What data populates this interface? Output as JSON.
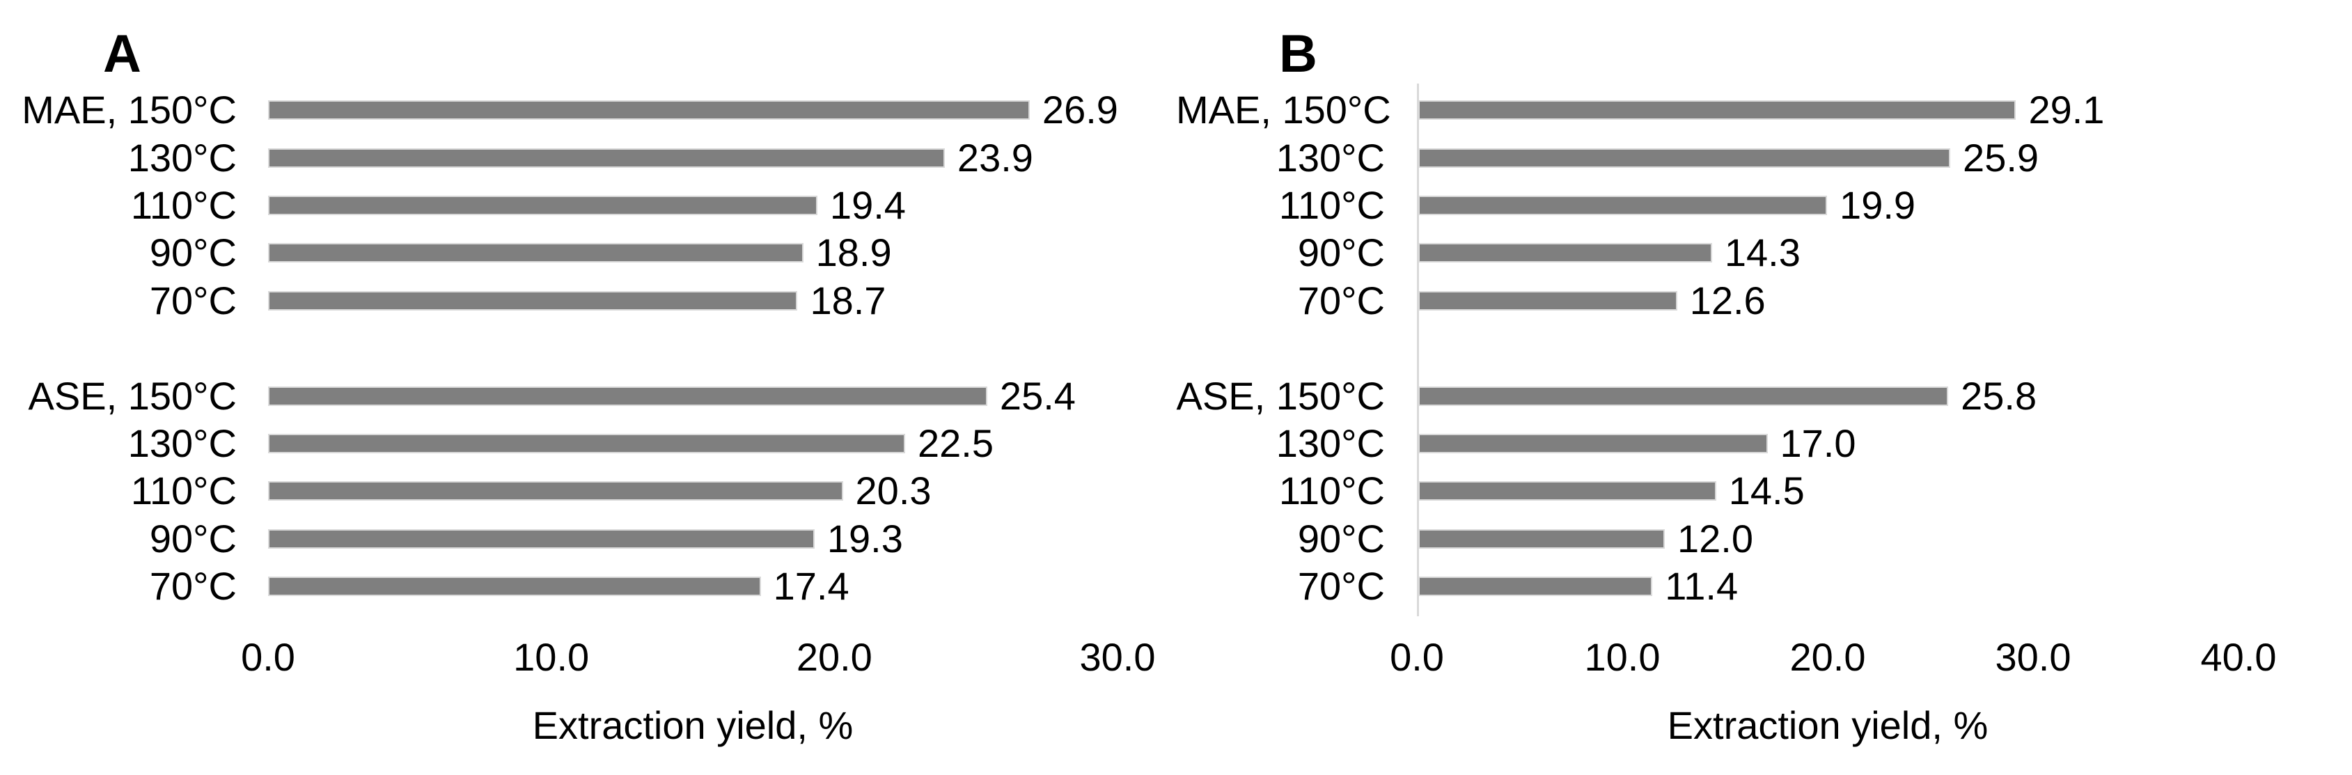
{
  "figure": {
    "background": "#ffffff",
    "description": "Two horizontal bar charts comparing extraction yields of MAE and ASE methods at different temperatures"
  },
  "colors": {
    "bar_fill": "#7f7f7f",
    "bar_border": "#d9d9d9",
    "axis_line": "#d9d9d9",
    "text": "#000000"
  },
  "chart_data": [
    {
      "type": "bar",
      "orientation": "horizontal",
      "panel_label": "A",
      "xlabel": "Extraction yield, %",
      "ylabel": "",
      "xlim": [
        0,
        30
      ],
      "xticks": [
        "0.0",
        "10.0",
        "20.0",
        "30.0"
      ],
      "grid": false,
      "legend": false,
      "axis_line_visible": false,
      "groups": [
        {
          "name": "MAE",
          "row_indexes": [
            0,
            1,
            2,
            3,
            4
          ]
        },
        {
          "name": "ASE",
          "row_indexes": [
            5,
            6,
            7,
            8,
            9
          ]
        }
      ],
      "categories": [
        "MAE, 150°C",
        "130°C",
        "110°C",
        "90°C",
        "70°C",
        "ASE, 150°C",
        "130°C",
        "110°C",
        "90°C",
        "70°C"
      ],
      "values": [
        26.9,
        23.9,
        19.4,
        18.9,
        18.7,
        25.4,
        22.5,
        20.3,
        19.3,
        17.4
      ],
      "value_labels": [
        "26.9",
        "23.9",
        "19.4",
        "18.9",
        "18.7",
        "25.4",
        "22.5",
        "20.3",
        "19.3",
        "17.4"
      ]
    },
    {
      "type": "bar",
      "orientation": "horizontal",
      "panel_label": "B",
      "xlabel": "Extraction yield, %",
      "ylabel": "",
      "xlim": [
        0,
        40
      ],
      "xticks": [
        "0.0",
        "10.0",
        "20.0",
        "30.0",
        "40.0"
      ],
      "grid": false,
      "legend": false,
      "axis_line_visible": true,
      "groups": [
        {
          "name": "MAE",
          "row_indexes": [
            0,
            1,
            2,
            3,
            4
          ]
        },
        {
          "name": "ASE",
          "row_indexes": [
            5,
            6,
            7,
            8,
            9
          ]
        }
      ],
      "categories": [
        "MAE, 150°C",
        "130°C",
        "110°C",
        "90°C",
        "70°C",
        "ASE, 150°C",
        "130°C",
        "110°C",
        "90°C",
        "70°C"
      ],
      "values": [
        29.1,
        25.9,
        19.9,
        14.3,
        12.6,
        25.8,
        17.0,
        14.5,
        12.0,
        11.4
      ],
      "value_labels": [
        "29.1",
        "25.9",
        "19.9",
        "14.3",
        "12.6",
        "25.8",
        "17.0",
        "14.5",
        "12.0",
        "11.4"
      ]
    }
  ]
}
